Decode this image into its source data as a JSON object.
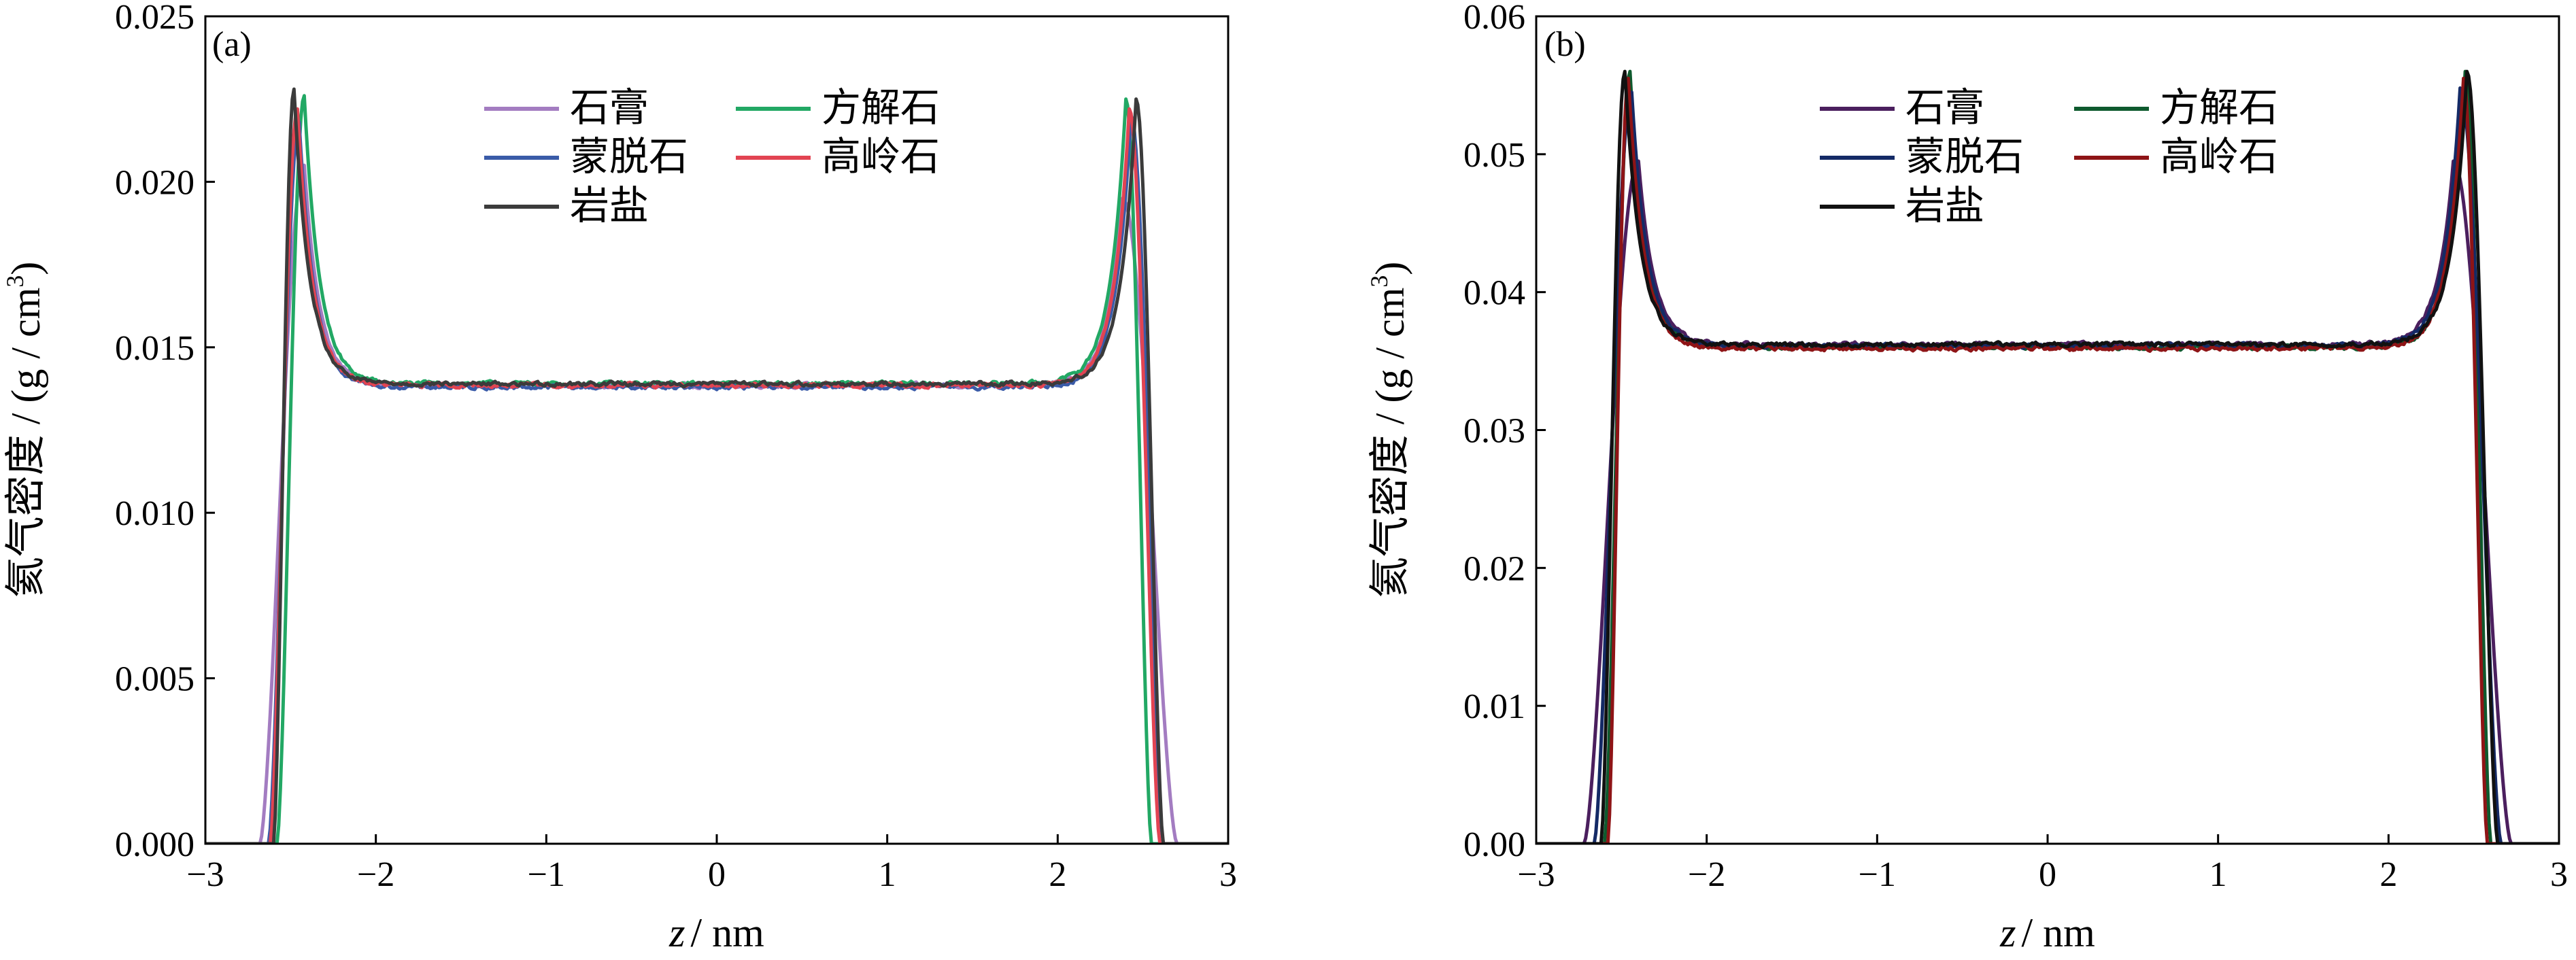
{
  "chart_data": [
    {
      "type": "line",
      "panel_label": "(a)",
      "xlabel_var": "z",
      "xlabel_unit": "/ nm",
      "ylabel_main": "氦气密度 / (g / cm",
      "ylabel_sup": "3",
      "ylabel_close": ")",
      "xlim": [
        -3,
        3
      ],
      "ylim": [
        0,
        0.025
      ],
      "xticks": [
        -3,
        -2,
        -1,
        0,
        1,
        2,
        3
      ],
      "xtick_labels": [
        "−3",
        "−2",
        "−1",
        "0",
        "1",
        "2",
        "3"
      ],
      "yticks": [
        0,
        0.005,
        0.01,
        0.015,
        0.02,
        0.025
      ],
      "ytick_labels": [
        "0.000",
        "0.005",
        "0.010",
        "0.015",
        "0.020",
        "0.025"
      ],
      "legend": {
        "position": "top-center",
        "columns": 2
      },
      "series": [
        {
          "name": "石膏",
          "color": "#a37cc1",
          "shape": {
            "left_edge": -2.68,
            "right_edge": 2.7,
            "left_peak_x": -2.42,
            "right_peak_x": 2.38,
            "left_peak_y": 0.0205,
            "right_peak_y": 0.0195,
            "plateau": 0.01385
          }
        },
        {
          "name": "方解石",
          "color": "#22a864",
          "shape": {
            "left_edge": -2.58,
            "right_edge": 2.55,
            "left_peak_x": -2.42,
            "right_peak_x": 2.4,
            "left_peak_y": 0.0226,
            "right_peak_y": 0.0225,
            "plateau": 0.0139
          }
        },
        {
          "name": "蒙脱石",
          "color": "#3a5ba8",
          "shape": {
            "left_edge": -2.63,
            "right_edge": 2.62,
            "left_peak_x": -2.45,
            "right_peak_x": 2.43,
            "left_peak_y": 0.0218,
            "right_peak_y": 0.022,
            "plateau": 0.0138
          }
        },
        {
          "name": "高岭石",
          "color": "#e24452",
          "shape": {
            "left_edge": -2.62,
            "right_edge": 2.6,
            "left_peak_x": -2.46,
            "right_peak_x": 2.42,
            "left_peak_y": 0.0222,
            "right_peak_y": 0.0222,
            "plateau": 0.01385
          }
        },
        {
          "name": "岩盐",
          "color": "#3b3b3b",
          "shape": {
            "left_edge": -2.6,
            "right_edge": 2.62,
            "left_peak_x": -2.48,
            "right_peak_x": 2.46,
            "left_peak_y": 0.0228,
            "right_peak_y": 0.0225,
            "plateau": 0.0139
          }
        }
      ]
    },
    {
      "type": "line",
      "panel_label": "(b)",
      "xlabel_var": "z",
      "xlabel_unit": "/ nm",
      "ylabel_main": "氦气密度 / (g / cm",
      "ylabel_sup": "3",
      "ylabel_close": ")",
      "xlim": [
        -3,
        3
      ],
      "ylim": [
        0,
        0.06
      ],
      "xticks": [
        -3,
        -2,
        -1,
        0,
        1,
        2,
        3
      ],
      "xtick_labels": [
        "−3",
        "−2",
        "−1",
        "0",
        "1",
        "2",
        "3"
      ],
      "yticks": [
        0,
        0.01,
        0.02,
        0.03,
        0.04,
        0.05,
        0.06
      ],
      "ytick_labels": [
        "0.00",
        "0.01",
        "0.02",
        "0.03",
        "0.04",
        "0.05",
        "0.06"
      ],
      "legend": {
        "position": "top-center",
        "columns": 2
      },
      "series": [
        {
          "name": "石膏",
          "color": "#4b1f5e",
          "shape": {
            "left_edge": -2.72,
            "right_edge": 2.72,
            "left_peak_x": -2.4,
            "right_peak_x": 2.38,
            "left_peak_y": 0.0495,
            "right_peak_y": 0.0495,
            "plateau": 0.0362
          }
        },
        {
          "name": "方解石",
          "color": "#0e5a2e",
          "shape": {
            "left_edge": -2.6,
            "right_edge": 2.6,
            "left_peak_x": -2.45,
            "right_peak_x": 2.45,
            "left_peak_y": 0.056,
            "right_peak_y": 0.056,
            "plateau": 0.036
          }
        },
        {
          "name": "蒙脱石",
          "color": "#142a66",
          "shape": {
            "left_edge": -2.66,
            "right_edge": 2.66,
            "left_peak_x": -2.44,
            "right_peak_x": 2.42,
            "left_peak_y": 0.0545,
            "right_peak_y": 0.0548,
            "plateau": 0.0361
          }
        },
        {
          "name": "高岭石",
          "color": "#8e1416",
          "shape": {
            "left_edge": -2.58,
            "right_edge": 2.58,
            "left_peak_x": -2.46,
            "right_peak_x": 2.44,
            "left_peak_y": 0.0555,
            "right_peak_y": 0.0555,
            "plateau": 0.0359
          }
        },
        {
          "name": "岩盐",
          "color": "#111111",
          "shape": {
            "left_edge": -2.62,
            "right_edge": 2.64,
            "left_peak_x": -2.48,
            "right_peak_x": 2.46,
            "left_peak_y": 0.056,
            "right_peak_y": 0.056,
            "plateau": 0.0362
          }
        }
      ]
    }
  ]
}
